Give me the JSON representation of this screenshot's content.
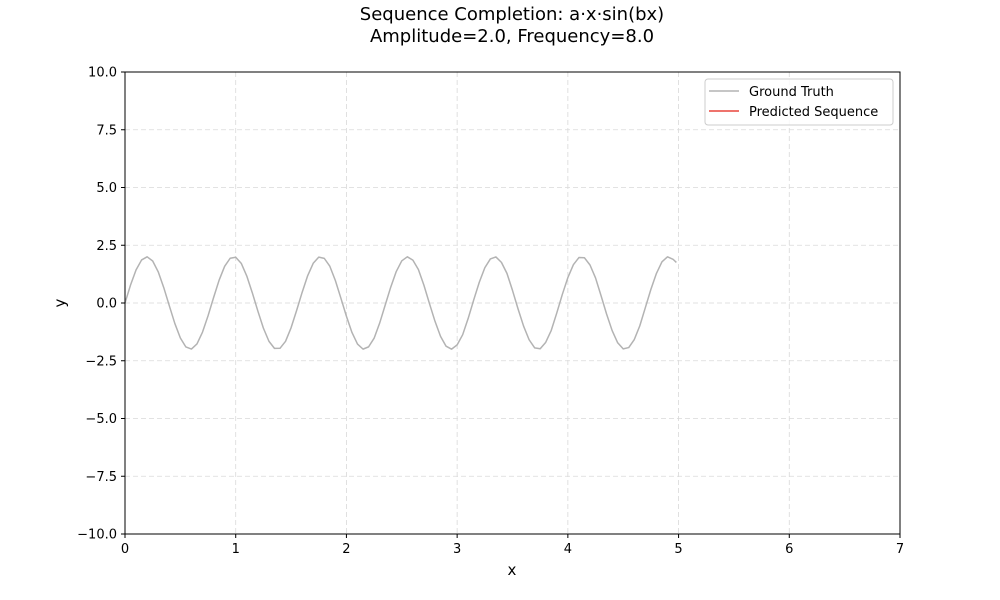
{
  "chart_data": {
    "type": "line",
    "title": "Sequence Completion: a·x·sin(bx)",
    "subtitle": "Amplitude=2.0, Frequency=8.0",
    "xlabel": "x",
    "ylabel": "y",
    "xlim": [
      0,
      7
    ],
    "ylim": [
      -10,
      10
    ],
    "x_ticks": [
      0,
      1,
      2,
      3,
      4,
      5,
      6,
      7
    ],
    "x_tick_labels": [
      "0",
      "1",
      "2",
      "3",
      "4",
      "5",
      "6",
      "7"
    ],
    "y_ticks": [
      -10,
      -7.5,
      -5,
      -2.5,
      0,
      2.5,
      5,
      7.5,
      10
    ],
    "y_tick_labels": [
      "−10.0",
      "−7.5",
      "−5.0",
      "−2.5",
      "0.0",
      "2.5",
      "5.0",
      "7.5",
      "10.0"
    ],
    "grid": true,
    "legend_position": "top-right",
    "series": [
      {
        "name": "Ground Truth",
        "color": "#b3b3b3",
        "x": [
          0,
          0.05,
          0.1,
          0.15,
          0.2,
          0.25,
          0.3,
          0.35,
          0.4,
          0.45,
          0.5,
          0.55,
          0.6,
          0.65,
          0.7,
          0.75,
          0.8,
          0.85,
          0.9,
          0.95,
          1.0,
          1.05,
          1.1,
          1.15,
          1.2,
          1.25,
          1.3,
          1.35,
          1.4,
          1.45,
          1.5,
          1.55,
          1.6,
          1.65,
          1.7,
          1.75,
          1.8,
          1.85,
          1.9,
          1.95,
          2.0,
          2.05,
          2.1,
          2.15,
          2.2,
          2.25,
          2.3,
          2.35,
          2.4,
          2.45,
          2.5,
          2.55,
          2.6,
          2.65,
          2.7,
          2.75,
          2.8,
          2.85,
          2.9,
          2.95,
          3.0,
          3.05,
          3.1,
          3.15,
          3.2,
          3.25,
          3.3,
          3.35,
          3.4,
          3.45,
          3.5,
          3.55,
          3.6,
          3.65,
          3.7,
          3.75,
          3.8,
          3.85,
          3.9,
          3.95,
          4.0,
          4.05,
          4.1,
          4.15,
          4.2,
          4.25,
          4.3,
          4.35,
          4.4,
          4.45,
          4.5,
          4.55,
          4.6,
          4.65,
          4.7,
          4.75,
          4.8,
          4.85,
          4.9,
          4.95,
          4.98
        ],
        "y": [
          0.0,
          0.779,
          1.435,
          1.864,
          1.999,
          1.819,
          1.351,
          0.668,
          -0.117,
          -0.885,
          -1.514,
          -1.903,
          -1.993,
          -1.771,
          -1.262,
          -0.555,
          0.233,
          0.987,
          1.587,
          1.937,
          1.979,
          1.717,
          1.168,
          0.44,
          -0.348,
          -1.088,
          -1.656,
          -1.964,
          -1.96,
          -1.658,
          -1.073,
          -0.325,
          0.462,
          1.183,
          1.718,
          1.984,
          1.932,
          1.592,
          0.974,
          0.209,
          -0.575,
          -1.275,
          -1.777,
          -1.997,
          -1.899,
          -1.524,
          -0.873,
          -0.093,
          0.684,
          1.361,
          1.827,
          2.0,
          1.857,
          1.449,
          0.769,
          -0.023,
          -0.792,
          -1.443,
          -1.871,
          -1.998,
          -1.813,
          -1.372,
          -0.662,
          0.139,
          0.897,
          1.525,
          1.907,
          1.994,
          1.759,
          1.282,
          0.545,
          -0.255,
          -0.998,
          -1.591,
          -1.941,
          -1.98,
          -1.704,
          -1.186,
          -0.431,
          0.37,
          1.099,
          1.659,
          1.967,
          1.957,
          1.645,
          1.085,
          0.315,
          -0.482,
          -1.193,
          -1.722,
          -1.986,
          -1.929,
          -1.581,
          -0.984,
          -0.197,
          0.59,
          1.281,
          1.782,
          1.997,
          1.893,
          1.755
        ]
      },
      {
        "name": "Predicted Sequence",
        "color": "#e8453c",
        "x": [],
        "y": []
      }
    ]
  }
}
